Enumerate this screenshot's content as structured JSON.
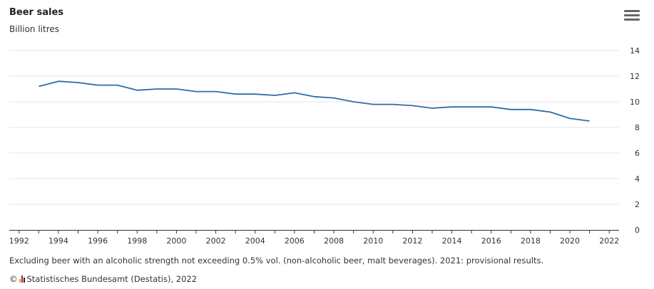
{
  "header": {
    "title": "Beer sales",
    "subtitle": "Billion litres"
  },
  "menu": {
    "icon": "hamburger-menu-icon"
  },
  "chart_data": {
    "type": "line",
    "title": "Beer sales",
    "ylabel": "Billion litres",
    "xlabel": "",
    "xlim": [
      1991.5,
      2022.5
    ],
    "ylim": [
      0,
      14
    ],
    "x_ticks": [
      1992,
      1994,
      1996,
      1998,
      2000,
      2002,
      2004,
      2006,
      2008,
      2010,
      2012,
      2014,
      2016,
      2018,
      2020,
      2022
    ],
    "y_ticks": [
      0,
      2,
      4,
      6,
      8,
      10,
      12,
      14
    ],
    "y_axis_position": "right",
    "grid": true,
    "series": [
      {
        "color": "#2e6da4",
        "x": [
          1993,
          1994,
          1995,
          1996,
          1997,
          1998,
          1999,
          2000,
          2001,
          2002,
          2003,
          2004,
          2005,
          2006,
          2007,
          2008,
          2009,
          2010,
          2011,
          2012,
          2013,
          2014,
          2015,
          2016,
          2017,
          2018,
          2019,
          2020,
          2021
        ],
        "y": [
          11.2,
          11.6,
          11.5,
          11.3,
          11.3,
          10.9,
          11.0,
          11.0,
          10.8,
          10.8,
          10.6,
          10.6,
          10.5,
          10.7,
          10.4,
          10.3,
          10.0,
          9.8,
          9.8,
          9.7,
          9.5,
          9.6,
          9.6,
          9.6,
          9.4,
          9.4,
          9.2,
          8.7,
          8.5
        ]
      }
    ]
  },
  "footer": {
    "note": "Excluding beer with an alcoholic strength not exceeding 0.5% vol. (non-alcoholic beer, malt beverages). 2021: provisional results.",
    "copyright_symbol": "©",
    "source": "Statistisches Bundesamt (Destatis), 2022",
    "logo_icon": "destatis-logo-icon"
  }
}
